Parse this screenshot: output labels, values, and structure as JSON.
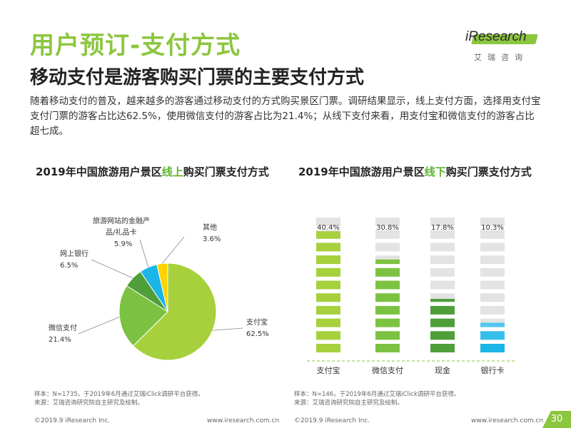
{
  "header": {
    "title": "用户预订-支付方式",
    "subtitle": "移动支付是游客购买门票的主要支付方式",
    "intro": "随着移动支付的普及，越来越多的游客通过移动支付的方式购买景区门票。调研结果显示，线上支付方面，选择用支付宝支付门票的游客占比达62.5%，使用微信支付的游客占比为21.4%；从线下支付来看，用支付宝和微信支付的游客占比超七成。"
  },
  "logo": {
    "word": "iResearch",
    "cn": "艾瑞咨询"
  },
  "chart_data": [
    {
      "type": "pie",
      "title_prefix": "2019年中国旅游用户景区",
      "title_highlight": "线上",
      "title_suffix": "购买门票支付方式",
      "slices": [
        {
          "label": "支付宝",
          "value": 62.5,
          "value_label": "62.5%",
          "color": "#a6d13c"
        },
        {
          "label": "微信支付",
          "value": 21.4,
          "value_label": "21.4%",
          "color": "#7cc242"
        },
        {
          "label": "网上银行",
          "value": 6.5,
          "value_label": "6.5%",
          "color": "#4f9e3a"
        },
        {
          "label": "旅游网站的金融产品/礼品卡",
          "label_line1": "旅游网站的金融产",
          "label_line2": "品/礼品卡",
          "value": 5.9,
          "value_label": "5.9%",
          "color": "#1bb5e8"
        },
        {
          "label": "其他",
          "value": 3.6,
          "value_label": "3.6%",
          "color": "#ffd200"
        }
      ]
    },
    {
      "type": "bar",
      "style": "pictorial-stacked-blocks",
      "title_prefix": "2019年中国旅游用户景区",
      "title_highlight": "线下",
      "title_suffix": "购买门票支付方式",
      "categories": [
        "支付宝",
        "微信支付",
        "现金",
        "银行卡"
      ],
      "values": [
        40.4,
        30.8,
        17.8,
        10.3
      ],
      "value_labels": [
        "40.4%",
        "30.8%",
        "17.8%",
        "10.3%"
      ],
      "colors": [
        "#a6d13c",
        "#7cc242",
        "#4f9e3a",
        "#1bb5e8"
      ],
      "ylim": [
        0,
        45
      ]
    }
  ],
  "notes": {
    "left_sample": "样本：N=1735，于2019年6月通过艾瑞iClick调研平台获得。",
    "left_source": "来源：艾瑞咨询研究院自主研究及绘制。",
    "right_sample": "样本：N=146，于2019年6月通过艾瑞iClick调研平台获得。",
    "right_source": "来源：艾瑞咨询研究院自主研究及绘制。"
  },
  "footer": {
    "copyright_left": "©2019.9 iResearch Inc.",
    "url_left": "www.iresearch.com.cn",
    "copyright_right": "©2019.9 iResearch Inc.",
    "url_right": "www.iresearch.com.cn",
    "page": "30"
  }
}
